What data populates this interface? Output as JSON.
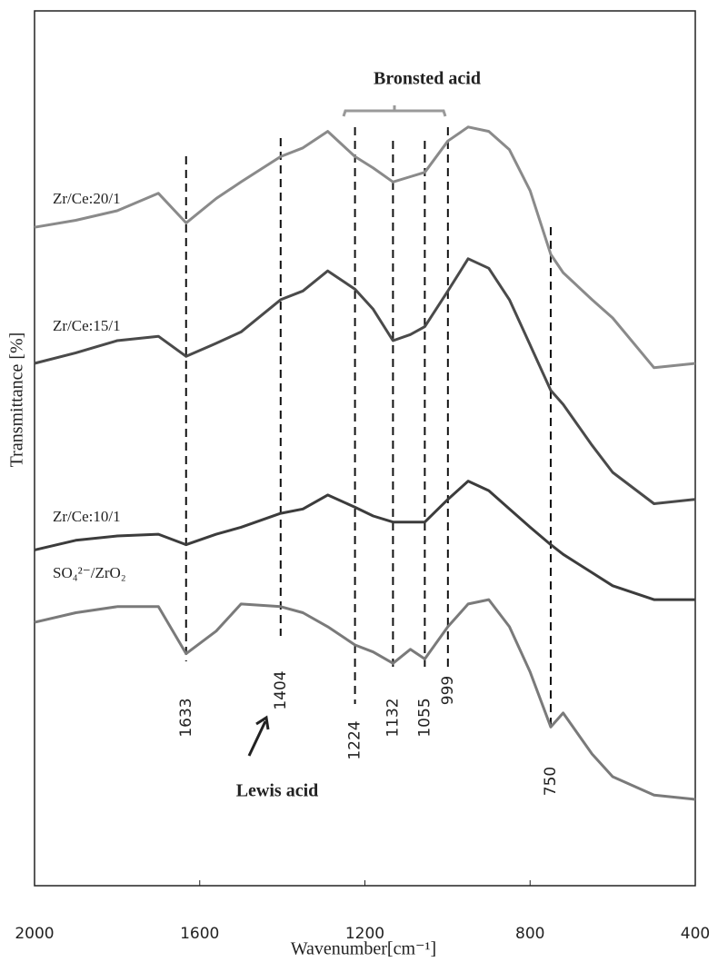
{
  "chart_data": {
    "type": "line",
    "xlabel": "Wavenumber[cm⁻¹]",
    "ylabel": "Transmittance [%]",
    "xlim": [
      2000,
      400
    ],
    "ylim": [
      0,
      100
    ],
    "xticks": [
      2000,
      1600,
      1200,
      800,
      400
    ],
    "x": [
      2000,
      1900,
      1800,
      1700,
      1633,
      1560,
      1500,
      1404,
      1350,
      1290,
      1224,
      1180,
      1132,
      1090,
      1055,
      999,
      950,
      900,
      850,
      800,
      750,
      720,
      650,
      600,
      500,
      400
    ],
    "series": [
      {
        "name": "Zr/Ce:20/1",
        "color": "#8a8a8a",
        "values": [
          75.5,
          76.3,
          77.4,
          79.4,
          76.0,
          78.8,
          80.7,
          83.6,
          84.6,
          86.5,
          83.6,
          82.3,
          80.7,
          81.3,
          81.8,
          85.4,
          87.0,
          86.5,
          84.4,
          79.7,
          72.4,
          70.3,
          67.2,
          65.1,
          59.4,
          59.9
        ]
      },
      {
        "name": "Zr/Ce:15/1",
        "color": "#4a4a4a",
        "values": [
          59.9,
          61.1,
          62.5,
          63.0,
          60.7,
          62.2,
          63.5,
          67.2,
          68.2,
          70.5,
          68.4,
          66.1,
          62.5,
          63.2,
          64.1,
          68.2,
          71.9,
          70.8,
          67.2,
          62.0,
          56.8,
          55.2,
          50.5,
          47.4,
          43.8,
          44.3
        ]
      },
      {
        "name": "Zr/Ce:10/1",
        "color": "#3c3c3c",
        "values": [
          38.5,
          39.6,
          40.1,
          40.3,
          39.1,
          40.3,
          41.1,
          42.7,
          43.2,
          44.8,
          43.4,
          42.4,
          41.7,
          41.7,
          41.7,
          44.3,
          46.4,
          45.3,
          43.2,
          41.1,
          39.1,
          38.0,
          35.9,
          34.4,
          32.8,
          32.8
        ]
      },
      {
        "name": "SO₄²⁻/ZrO₂",
        "color": "#7a7a7a",
        "values": [
          30.2,
          31.3,
          32.0,
          32.0,
          26.6,
          29.2,
          32.3,
          32.0,
          31.3,
          29.7,
          27.6,
          26.8,
          25.5,
          27.1,
          26.0,
          29.7,
          32.3,
          32.8,
          29.7,
          24.5,
          18.2,
          19.8,
          15.1,
          12.5,
          10.4,
          9.9
        ]
      }
    ],
    "peaks": [
      1633,
      1404,
      1224,
      1132,
      1055,
      999,
      750
    ],
    "annotations": [
      "Bronsted  acid",
      "Lewis  acid"
    ]
  }
}
